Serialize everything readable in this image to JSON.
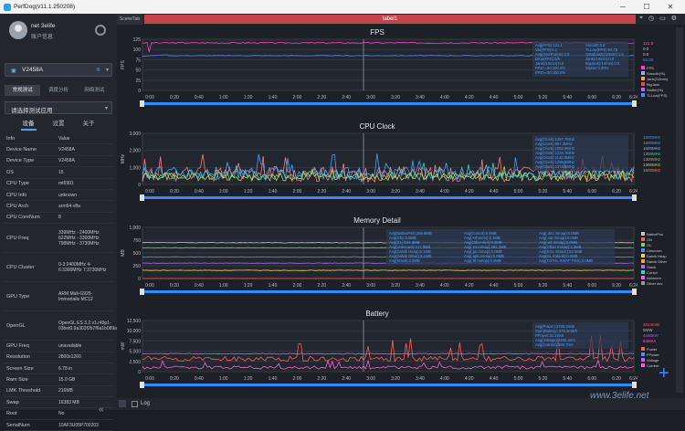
{
  "window": {
    "title": "PerfDog(v11.1.250208)",
    "minimize": "─",
    "maximize": "☐",
    "close": "✕"
  },
  "profile": {
    "username": "net 3elife",
    "account_info": "账户信息"
  },
  "device": {
    "name": "V2458A"
  },
  "mode_tabs": [
    "常规测试",
    "调度分析",
    "网络测试"
  ],
  "app_select": {
    "placeholder": "请选择测试应用"
  },
  "sub_tabs": [
    "设备",
    "设置",
    "关于"
  ],
  "info_table": [
    {
      "k": "Info",
      "v": "Value"
    },
    {
      "k": "Device Name",
      "v": "V2458A"
    },
    {
      "k": "Device Type",
      "v": "V2458A"
    },
    {
      "k": "OS",
      "v": "15"
    },
    {
      "k": "CPU Type",
      "v": "mt6991"
    },
    {
      "k": "CPU Info",
      "v": "unknown"
    },
    {
      "k": "CPU Arch",
      "v": "arm64-v8a"
    },
    {
      "k": "CPU CoreNum",
      "v": "8"
    },
    {
      "k": "CPU Freq",
      "v": "339MHz - 2400MHz 622MHz - 3300MHz 798MHz - 3730MHz",
      "tall": 3
    },
    {
      "k": "CPU Cluster",
      "v": "0-3:2400MHz 4-6:3300MHz 7:3730MHz",
      "tall": 3
    },
    {
      "k": "GPU Type",
      "v": "ARM Mali-G925-Immortalis MC12",
      "tall": 3
    },
    {
      "k": "OpenGL",
      "v": "OpenGL ES 3.2 v1.r49p1-03bet0.9a303f2b7f6a1b089a8ec9199cd0a8d4",
      "tall": 3
    },
    {
      "k": "GPU Freq",
      "v": "unavailable"
    },
    {
      "k": "Resolution",
      "v": "2800x1260"
    },
    {
      "k": "Screen Size",
      "v": "6.78 in"
    },
    {
      "k": "Ram Size",
      "v": "15.0 GB"
    },
    {
      "k": "LMK Threshold",
      "v": "216MB"
    },
    {
      "k": "Swap",
      "v": "16383 MB"
    },
    {
      "k": "Root",
      "v": "No"
    },
    {
      "k": "SerialNum",
      "v": "10AF3U05P700203"
    }
  ],
  "scene_tab": "SceneTab",
  "label_tag": "label1",
  "log_label": "Log",
  "watermark": "www.3elife.net",
  "charts": {
    "x_ticks": [
      "0:00",
      "0:20",
      "0:40",
      "1:00",
      "1:20",
      "1:40",
      "2:00",
      "2:20",
      "2:40",
      "3:00",
      "3:20",
      "3:40",
      "4:00",
      "4:20",
      "4:40",
      "5:00",
      "5:20",
      "5:40",
      "6:00",
      "6:20"
    ],
    "end_label": "6:24",
    "panels": [
      {
        "title": "FPS",
        "ylabel": "FPS",
        "yticks": [
          "0",
          "25",
          "50",
          "75",
          "100",
          "125"
        ],
        "ymax": 125,
        "readout": [
          "Avg(FPS):121.1",
          "Var(FPS):0.1",
          "Avg(InterFrame):2.0",
          "Drop(FPS):0/h",
          "Jank(/10min):0.0",
          "FPS>=60:100.0%",
          "FPS>=30:100.0%",
          "Smooth:0.8",
          "TLLow(FPS):84.75",
          "SmallJank(/10min):1.6",
          "Jank(/10min):0.0",
          "BigJank(/10min):0.0",
          "Stutter:0.00%"
        ],
        "right_vals": [
          {
            "t": "121.0",
            "c": "#ff5fd2"
          },
          {
            "t": "0.0",
            "c": "#c8c8c8"
          },
          {
            "t": "0.0",
            "c": "#c8c8c8"
          },
          {
            "t": "84.00",
            "c": "#4a8fff"
          }
        ],
        "legend": [
          {
            "n": "FPS",
            "c": "#ff3fd0"
          },
          {
            "n": "Smooth(%)",
            "c": "#88b0ff"
          },
          {
            "n": "Jank(/10min)",
            "c": "#ff9e3a"
          },
          {
            "n": "BigJank",
            "c": "#ff4444"
          },
          {
            "n": "Stutter(%)",
            "c": "#b06aff"
          },
          {
            "n": "TLLow(FPS)",
            "c": "#4a8fff"
          }
        ]
      },
      {
        "title": "CPU Clock",
        "ylabel": "MHz",
        "yticks": [
          "0",
          "1,000",
          "2,000",
          "3,000"
        ],
        "ymax": 3000,
        "readout": [
          "Avg(Clock):1397.7MHz",
          "Avg(Clock):867.3MHz",
          "Avg(Clock):1063.5MHz",
          "Avg(Clock):1234.7MHz",
          "Avg(Clock):1140.0MHz",
          "Avg(Clock):1296.5MHz",
          "Avg(Clock):1373.8MHz"
        ],
        "right_vals": [
          {
            "t": "1600MHz",
            "c": "#4a8fff"
          },
          {
            "t": "1600MHz",
            "c": "#4aa3ff"
          },
          {
            "t": "1600MHz",
            "c": "#5ec8ff"
          },
          {
            "t": "1300MHz",
            "c": "#3fd0c8"
          },
          {
            "t": "1300MHz",
            "c": "#7dd35a"
          },
          {
            "t": "1300MHz",
            "c": "#c8d34a"
          },
          {
            "t": "1600MHz",
            "c": "#ff7a7a"
          }
        ],
        "legend": []
      },
      {
        "title": "Memory Detail",
        "ylabel": "MB",
        "yticks": [
          "0",
          "250",
          "500",
          "750",
          "1,000"
        ],
        "ymax": 1000,
        "readout": [
          "Avg(NativePss):285.8MB",
          "Avg(Gfx):0.0MB",
          "Avg(GL):151.3MB",
          "Avg(Unknown):417.8MB",
          "Avg(Dalvik Heap):6.1MB",
          "Avg(Dalvik Other):5.1MB",
          "Avg(Stack):2.0MB",
          "Avg(Cursor):0.0MB",
          "Avg(Ashmem):0.1MB",
          "Avg(Other dev):0.0MB",
          "Avg(.so mmap):291.3MB",
          "Avg(.jar mmap):0.0MB",
          "Avg(.apk mmap):0.0MB",
          "Avg(.ttf mmap):0.0MB",
          "Avg(.dex mmap):0.0MB",
          "Avg(.oat mmap):0.0MB",
          "Avg(.art mmap):0.0MB",
          "Avg(Other mmap):2.3MB",
          "Avg(EGL mtrack):53.0MB",
          "Avg(GL mtrack):0.0MB",
          "Avg(TOTAL SWAP PSS):0.0MB"
        ],
        "right_vals": [],
        "legend": [
          {
            "n": "NativePss",
            "c": "#c8c8c8"
          },
          {
            "n": "Gfx",
            "c": "#ff5f5f"
          },
          {
            "n": "GL",
            "c": "#7dd35a"
          },
          {
            "n": "Unknown",
            "c": "#4a8fff"
          },
          {
            "n": "Dalvik Heap",
            "c": "#ffcc44"
          },
          {
            "n": "Dalvik Other",
            "c": "#ff9e3a"
          },
          {
            "n": "Stack",
            "c": "#b06aff"
          },
          {
            "n": "Cursor",
            "c": "#3fd0c8"
          },
          {
            "n": "Ashmem",
            "c": "#ff5fd2"
          },
          {
            "n": "Other dev",
            "c": "#999999"
          }
        ]
      },
      {
        "title": "Battery",
        "ylabel": "mW",
        "yticks": [
          "0",
          "2,500",
          "5,000",
          "7,500",
          "10,000",
          "12,500"
        ],
        "ymax": 12500,
        "readout": [
          "Avg(Power):3706.2mW",
          "Sum(Battery):376.4mWh",
          "FPower:31.2mW",
          "Avg(Voltage):4432.4mV",
          "Avg(Current):850.7mA"
        ],
        "right_vals": [
          {
            "t": "3024mW",
            "c": "#ff5f5f"
          },
          {
            "t": "0mW",
            "c": "#c8c8c8"
          },
          {
            "t": "4440mV",
            "c": "#b06aff"
          },
          {
            "t": "840mA",
            "c": "#ff5fd2"
          }
        ],
        "legend": [
          {
            "n": "Power",
            "c": "#ff5f5f"
          },
          {
            "n": "FPower",
            "c": "#4a8fff"
          },
          {
            "n": "Voltage",
            "c": "#b06aff"
          },
          {
            "n": "Current",
            "c": "#ff5fd2"
          }
        ]
      }
    ]
  }
}
